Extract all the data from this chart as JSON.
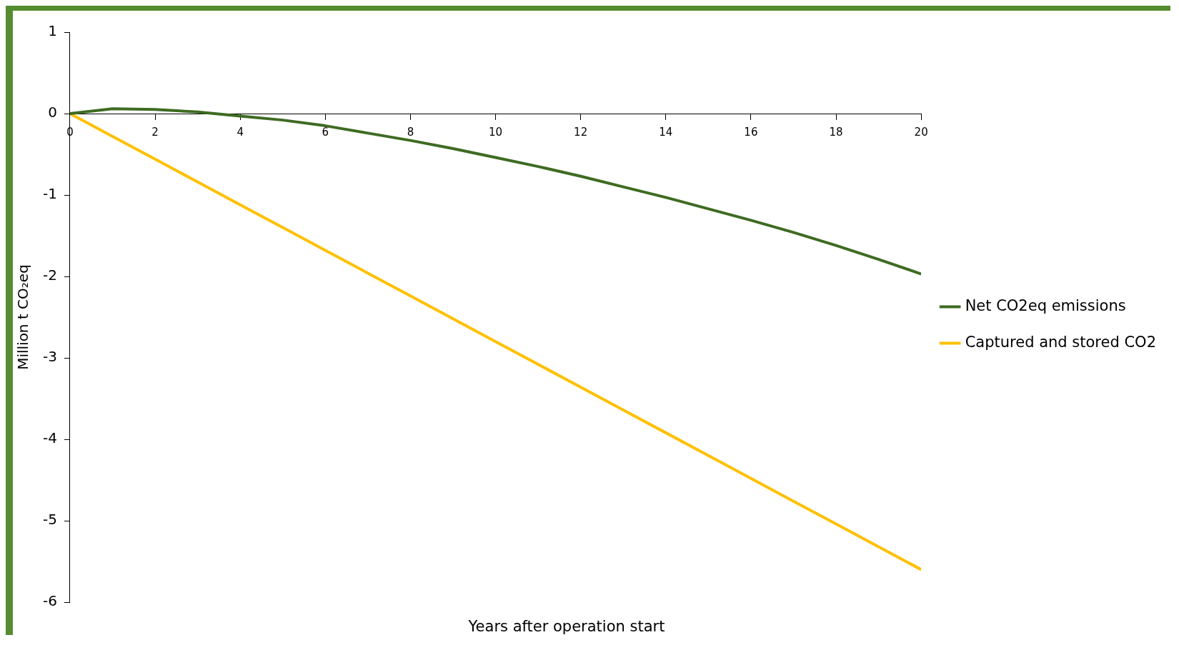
{
  "chart_data": {
    "type": "line",
    "xlabel": "Years after operation start",
    "ylabel": "Million t CO₂eq",
    "x": [
      0,
      1,
      2,
      3,
      4,
      5,
      6,
      7,
      8,
      9,
      10,
      11,
      12,
      13,
      14,
      15,
      16,
      17,
      18,
      19,
      20
    ],
    "series": [
      {
        "name": "Net CO2eq emissions",
        "color": "#3e6b22",
        "values": [
          0,
          0.06,
          0.05,
          0.02,
          -0.03,
          -0.08,
          -0.15,
          -0.24,
          -0.33,
          -0.43,
          -0.54,
          -0.65,
          -0.77,
          -0.9,
          -1.03,
          -1.17,
          -1.31,
          -1.46,
          -1.62,
          -1.79,
          -1.97
        ]
      },
      {
        "name": "Captured and stored CO2",
        "color": "#ffc000",
        "values": [
          0,
          -0.28,
          -0.56,
          -0.84,
          -1.12,
          -1.4,
          -1.68,
          -1.96,
          -2.24,
          -2.52,
          -2.8,
          -3.08,
          -3.36,
          -3.64,
          -3.92,
          -4.2,
          -4.48,
          -4.76,
          -5.04,
          -5.32,
          -5.6
        ]
      }
    ],
    "xlim": [
      0,
      20
    ],
    "xticks": [
      0,
      2,
      4,
      6,
      8,
      10,
      12,
      14,
      16,
      18,
      20
    ],
    "ylim": [
      -6,
      1
    ],
    "yticks": [
      -6,
      -5,
      -4,
      -3,
      -2,
      -1,
      0,
      1
    ],
    "grid": false,
    "legend": "right",
    "marker": "none",
    "line_style": "solid"
  }
}
